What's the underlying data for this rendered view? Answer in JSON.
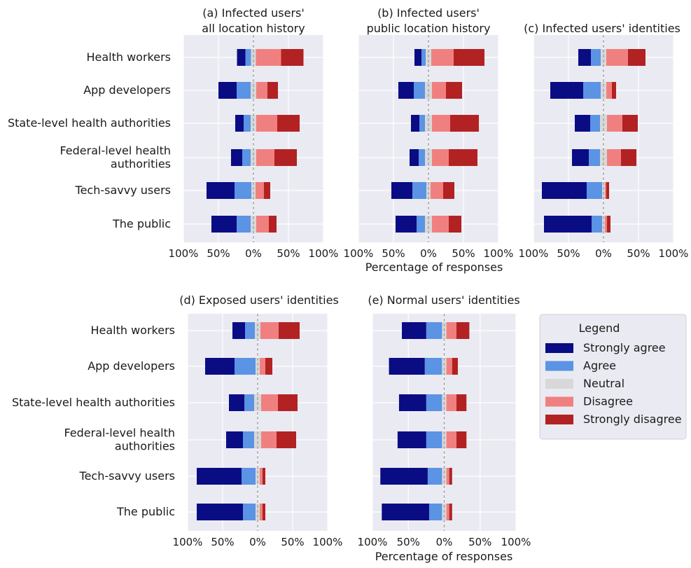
{
  "chart_data": {
    "type": "bar",
    "orientation": "horizontal",
    "stacking": "diverging",
    "xlim": [
      -100,
      100
    ],
    "x_ticks": [
      "100%",
      "50%",
      "0%",
      "50%",
      "100%"
    ],
    "categories": [
      "Health workers",
      "App developers",
      "State-level health authorities",
      "Federal-level health\nauthorities",
      "Tech-savvy users",
      "The public"
    ],
    "x_axis_label": "Percentage of responses",
    "legend": {
      "title": "Legend",
      "position": "right",
      "items": [
        "Strongly agree",
        "Agree",
        "Neutral",
        "Disagree",
        "Strongly disagree"
      ]
    },
    "colors": {
      "strongly_agree": "#0a0c84",
      "agree": "#5b93e5",
      "neutral": "#d8d8d8",
      "disagree": "#f08080",
      "strongly_disagree": "#b22222",
      "panel_bg": "#eaeaf2",
      "grid": "#ffffff"
    },
    "panels": [
      {
        "title": "(a) Infected users'\nall location history",
        "values": [
          [
            12,
            8,
            7,
            36,
            32
          ],
          [
            26,
            20,
            8,
            16,
            15
          ],
          [
            12,
            10,
            8,
            30,
            32
          ],
          [
            16,
            12,
            8,
            26,
            32
          ],
          [
            40,
            24,
            6,
            12,
            9
          ],
          [
            36,
            20,
            8,
            18,
            11
          ]
        ]
      },
      {
        "title": "(b) Infected users'\npublic location history",
        "values": [
          [
            10,
            6,
            8,
            32,
            44
          ],
          [
            22,
            16,
            10,
            20,
            23
          ],
          [
            12,
            8,
            10,
            26,
            41
          ],
          [
            13,
            9,
            10,
            24,
            41
          ],
          [
            30,
            20,
            6,
            18,
            16
          ],
          [
            30,
            12,
            10,
            24,
            18
          ]
        ]
      },
      {
        "title": "(c) Infected users' identities",
        "values": [
          [
            18,
            14,
            8,
            31,
            25
          ],
          [
            47,
            25,
            8,
            8,
            6
          ],
          [
            22,
            14,
            10,
            22,
            22
          ],
          [
            24,
            16,
            10,
            20,
            22
          ],
          [
            64,
            22,
            4,
            2,
            4
          ],
          [
            68,
            15,
            4,
            3,
            5
          ]
        ]
      },
      {
        "title": "(d) Exposed users' identities",
        "values": [
          [
            18,
            14,
            8,
            26,
            30
          ],
          [
            42,
            30,
            6,
            8,
            10
          ],
          [
            22,
            14,
            10,
            24,
            28
          ],
          [
            24,
            16,
            10,
            22,
            28
          ],
          [
            64,
            20,
            6,
            4,
            4
          ],
          [
            66,
            18,
            6,
            4,
            4
          ]
        ]
      },
      {
        "title": "(e) Normal users' identities",
        "values": [
          [
            34,
            22,
            6,
            14,
            18
          ],
          [
            50,
            24,
            6,
            8,
            8
          ],
          [
            38,
            22,
            6,
            14,
            14
          ],
          [
            40,
            22,
            6,
            14,
            14
          ],
          [
            66,
            20,
            6,
            4,
            4
          ],
          [
            66,
            18,
            6,
            4,
            4
          ]
        ]
      }
    ]
  }
}
